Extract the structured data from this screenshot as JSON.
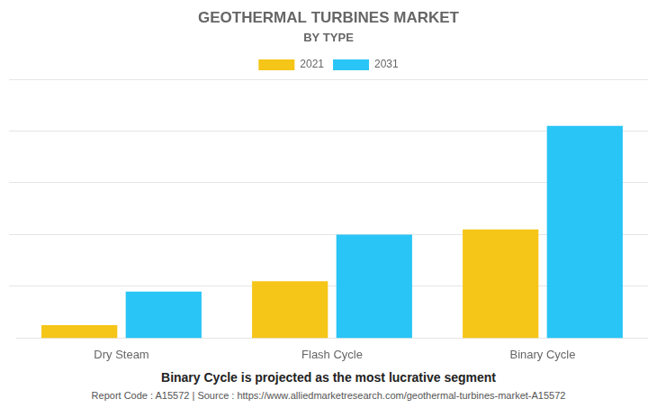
{
  "chart_data": {
    "type": "bar",
    "title": "GEOTHERMAL TURBINES MARKET",
    "subtitle": "BY TYPE",
    "categories": [
      "Dry Steam",
      "Flash Cycle",
      "Binary Cycle"
    ],
    "series": [
      {
        "name": "2021",
        "color": "#F5C518",
        "values": [
          0.05,
          0.22,
          0.42
        ]
      },
      {
        "name": "2031",
        "color": "#29C5F6",
        "values": [
          0.18,
          0.4,
          0.82
        ]
      }
    ],
    "ylim": [
      0,
      1.0
    ],
    "yticks": [
      0.2,
      0.4,
      0.6,
      0.8,
      1.0
    ],
    "grid": true,
    "legend": "top",
    "tick_labels": "x",
    "annotations": [
      "Binary Cycle is projected as the most lucrative segment",
      "Report Code : A15572  |  Source : https://www.alliedmarketresearch.com/geothermal-turbines-market-A15572"
    ]
  }
}
